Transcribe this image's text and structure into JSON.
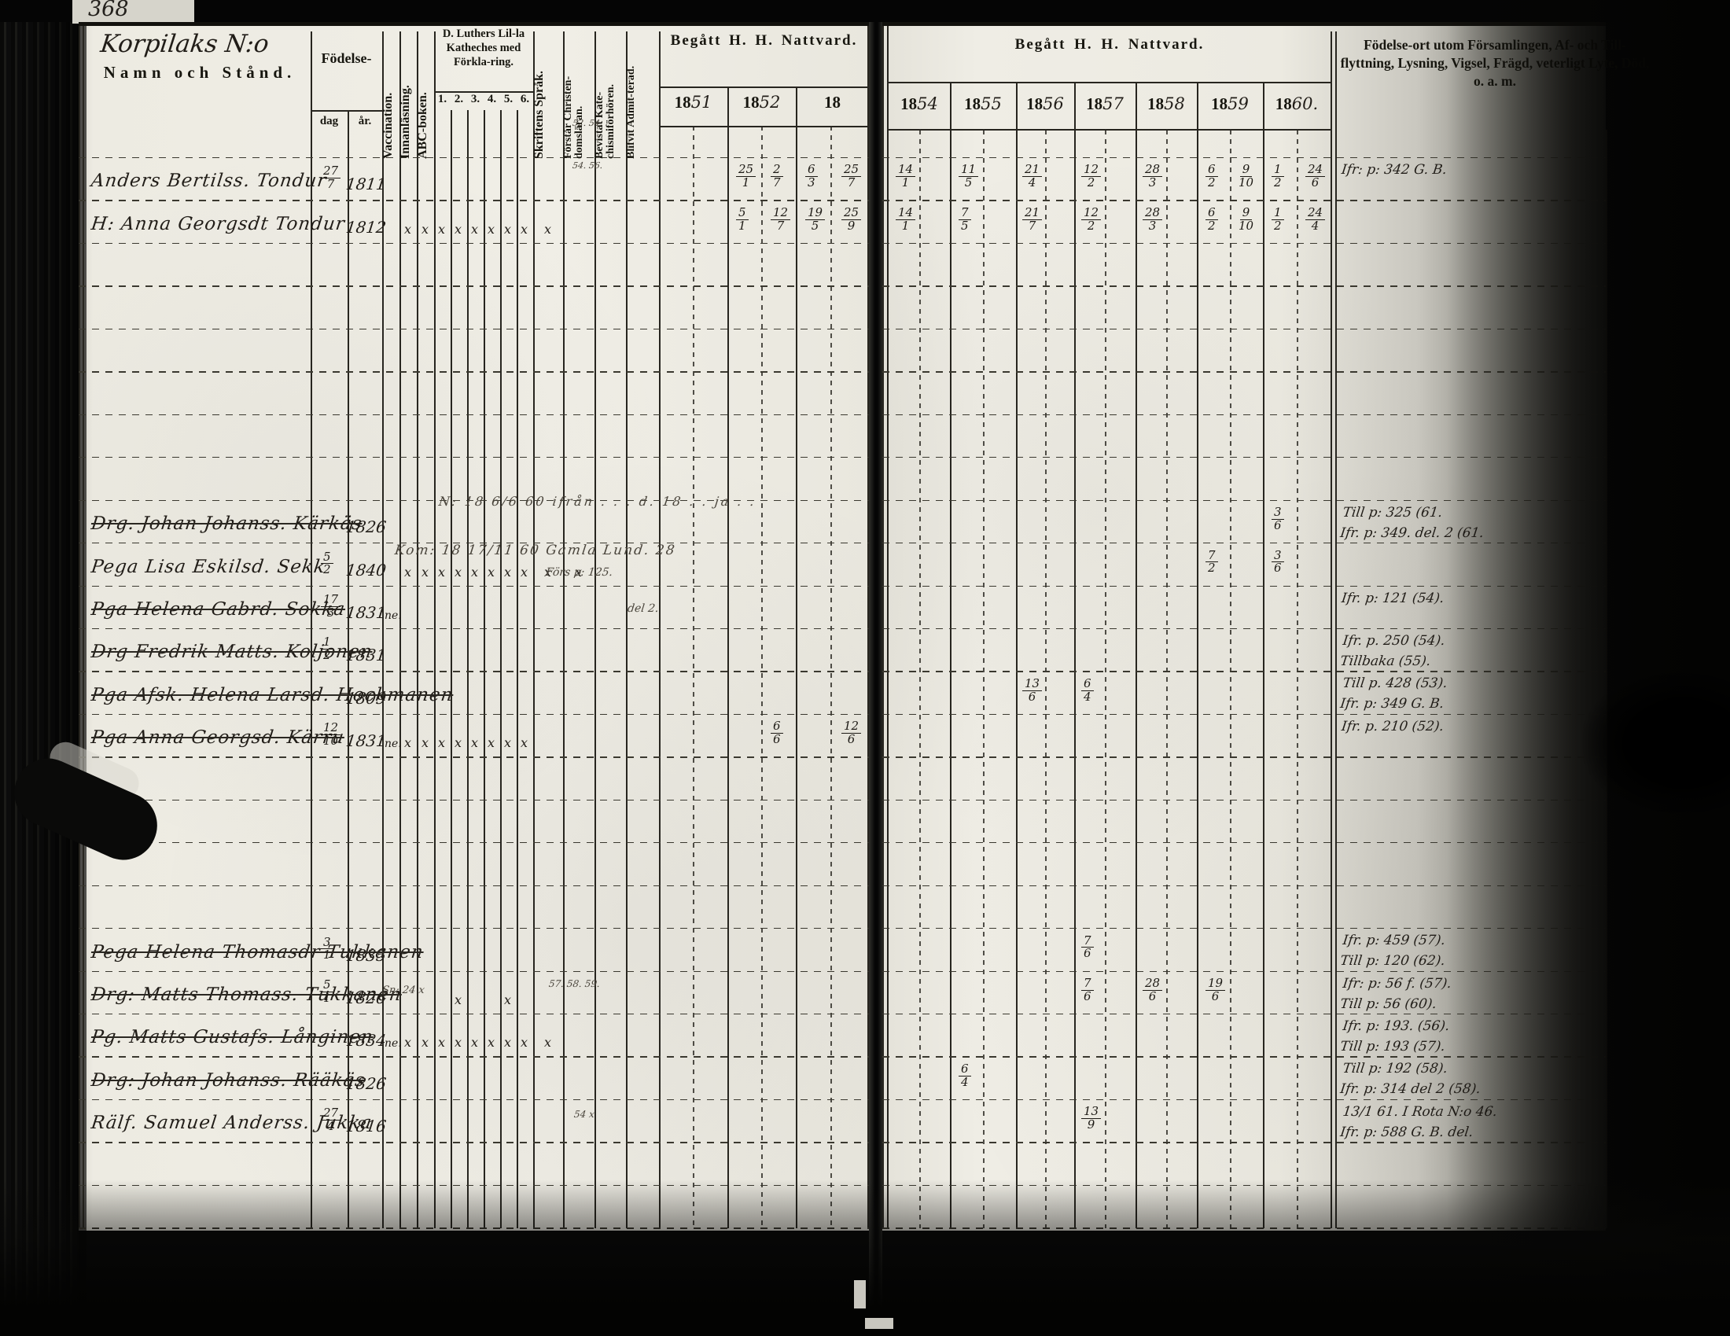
{
  "scan": {
    "page_number": "368"
  },
  "headers": {
    "parish_handwritten": "Korpilaks N:o",
    "name_col": "Namn och Stånd.",
    "birth": "Födelse-",
    "birth_day": "dag",
    "birth_year": "år.",
    "vaccination": "Vaccination.",
    "reading": "Innanläsning.",
    "abc_book": "ABC-boken.",
    "catechism_title": "D. Luthers Lil-la Katheches med Förkla-ring.",
    "catechism_cols": [
      "1.",
      "2.",
      "3.",
      "4.",
      "5.",
      "6."
    ],
    "scripture": "Skriftens Språk.",
    "understands": "Förstår Christen-domsläran.",
    "attended": "Bevistat Kate-chismiförhören.",
    "admitted": "Blifvit Admit-terad.",
    "communion_left": "Begått H. H. Nattvard.",
    "communion_right": "Begått H. H. Nattvard.",
    "years_left": [
      "1851",
      "1852",
      "18"
    ],
    "years_right": [
      "1854",
      "1855",
      "1856",
      "1857",
      "1858",
      "1859",
      "1860."
    ],
    "notes": "Födelse-ort utom Församlingen, Af- och Till-flyttning, Lysning, Vigsel, Frägd, veterligt Lyte, Död, o. a. m."
  },
  "rows": [
    {
      "r": 0,
      "name": "Anders Bertilss. Tondur",
      "struck": false,
      "dag": "27/7",
      "ar": "1811",
      "vacc": "",
      "xmarks": [],
      "marks": {
        "y1852a": "25/1",
        "y1852b": "2/7",
        "y1853a": "6/3",
        "y1853b": "25/7",
        "y1854a": "14/1",
        "y1855a": "11/5",
        "y1856a": "21/4",
        "y1857a": "12/2",
        "y1858a": "28/3",
        "y1859a": "6/2",
        "y1859b": "9/10",
        "y1860a": "1/2",
        "y1860b": "24/6"
      },
      "notes": [
        "Ifr: p: 342 G. B."
      ]
    },
    {
      "r": 1,
      "name": "H: Anna Georgsdt Tondur",
      "struck": false,
      "dag": "",
      "ar": "1812",
      "vacc": "",
      "xmarks": [
        "innan",
        "abc",
        "k1",
        "k2",
        "k3",
        "k4",
        "k5",
        "k6",
        "skrift"
      ],
      "marks": {
        "y1852a": "5/1",
        "y1852b": "12/7",
        "y1853a": "19/5",
        "y1853b": "25/9",
        "y1854a": "14/1",
        "y1855a": "7/5",
        "y1856a": "21/7",
        "y1857a": "12/2",
        "y1858a": "28/3",
        "y1859a": "6/2",
        "y1859b": "9/10",
        "y1860a": "1/2",
        "y1860b": "24/4"
      },
      "notes": []
    },
    {
      "r": 8,
      "name": "Drg. Johan Johanss. Kärkäs",
      "struck": true,
      "dag": "",
      "ar": "1826",
      "vacc": "",
      "xmarks": [],
      "marks": {
        "y1860a": "3/6"
      },
      "notes": [
        "Till p: 325 (61.",
        "Ifr. p: 349. del. 2 (61."
      ]
    },
    {
      "r": 9,
      "name": "Pega Lisa Eskilsd. Sekk",
      "struck": false,
      "dag": "5/2",
      "ar": "1840",
      "vacc": "",
      "xmarks": [
        "innan",
        "abc",
        "k1",
        "k2",
        "k3",
        "k4",
        "k5",
        "k6",
        "skrift",
        "forstar"
      ],
      "marks": {
        "y1859a": "7/2",
        "y1860a": "3/6"
      },
      "notes": []
    },
    {
      "r": 10,
      "name": "Pga Helena Gabrd. Sokka",
      "struck": true,
      "dag": "17/3",
      "ar": "1831",
      "vacc": "ne.",
      "xmarks": [],
      "marks": {},
      "notes": [
        "Ifr. p: 121 (54)."
      ]
    },
    {
      "r": 11,
      "name": "Drg Fredrik Matts. Koljonen",
      "struck": true,
      "dag": "1/2",
      "ar": "1831",
      "vacc": "",
      "xmarks": [],
      "marks": {},
      "notes": [
        "Ifr. p. 250 (54).",
        "Tillbaka (55)."
      ]
    },
    {
      "r": 12,
      "name": "Pga Afsk. Helena Larsd. Hockmanen",
      "struck": true,
      "dag": "",
      "ar": "1809",
      "vacc": "",
      "xmarks": [],
      "marks": {
        "y1856a": "13/6",
        "y1857a": "6/4"
      },
      "notes": [
        "Till p. 428 (53).",
        "Ifr. p: 349 G. B."
      ]
    },
    {
      "r": 13,
      "name": "Pga Anna Georgsd. Kärru",
      "struck": true,
      "dag": "12/10",
      "ar": "1831",
      "vacc": "ne.",
      "xmarks": [
        "innan",
        "abc",
        "k1",
        "k2",
        "k3",
        "k4",
        "k5",
        "k6"
      ],
      "marks": {
        "y1852b": "6/6",
        "y1853b": "12/6"
      },
      "notes": [
        "Ifr. p. 210 (52)."
      ]
    },
    {
      "r": 18,
      "name": "Pega Helena Thomasdr Tukkanen",
      "struck": true,
      "dag": "3/1",
      "ar": "1835",
      "vacc": "",
      "xmarks": [],
      "marks": {
        "y1857a": "7/6"
      },
      "notes": [
        "Ifr. p: 459 (57).",
        "Till p: 120 (62)."
      ]
    },
    {
      "r": 19,
      "name": "Drg: Matts Thomass. Tukkanen",
      "struck": true,
      "dag": "5/1",
      "ar": "1826",
      "vacc": "",
      "xmarks": [
        "k2",
        "k5"
      ],
      "marks": {
        "y1857a": "7/6",
        "y1858a": "28/6",
        "y1859a": "19/6"
      },
      "notes": [
        "Ifr: p: 56 f. (57).",
        "Till p: 56 (60)."
      ]
    },
    {
      "r": 20,
      "name": "Pg. Matts Gustafs. Långinen",
      "struck": true,
      "dag": "",
      "ar": "1834",
      "vacc": "ne.",
      "xmarks": [
        "innan",
        "abc",
        "k1",
        "k2",
        "k3",
        "k4",
        "k5",
        "k6",
        "skrift"
      ],
      "marks": {},
      "notes": [
        "Ifr. p: 193. (56).",
        "Till p: 193 (57)."
      ]
    },
    {
      "r": 21,
      "name": "Drg: Johan Johanss. Rääkäs",
      "struck": true,
      "dag": "",
      "ar": "1826",
      "vacc": "",
      "xmarks": [],
      "marks": {
        "y1855a": "6/4"
      },
      "notes": [
        "Till p: 192 (58).",
        "Ifr. p: 314 del 2 (58)."
      ]
    },
    {
      "r": 22,
      "name": "Rälf. Samuel Anderss. Jukka",
      "struck": false,
      "dag": "27/4",
      "ar": "1816",
      "vacc": "",
      "xmarks": [],
      "marks": {
        "y1857a": "13/9"
      },
      "notes": [
        "13/1 61. I Rota N:o 46.",
        "Ifr. p: 588 G. B. del."
      ]
    }
  ],
  "annotations": [
    "N: 18 6/6 60 ifrån . . . d. 18 . . ja . .",
    "Kom: 18 17/11 60 Gamla Lund. 28",
    "Förs p: 125.",
    "del 2.",
    "Sn: 24 x",
    "52. 54.",
    "54. 56.",
    "57. 58. 59.",
    "54 x"
  ]
}
